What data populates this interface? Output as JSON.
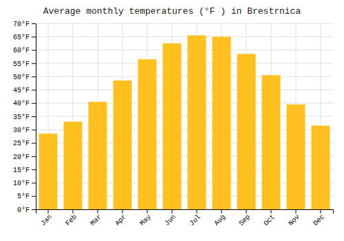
{
  "chart_data": {
    "type": "bar",
    "title": "Average monthly temperatures (°F ) in Brestrnica",
    "categories": [
      "Jan",
      "Feb",
      "Mar",
      "Apr",
      "May",
      "Jun",
      "Jul",
      "Aug",
      "Sep",
      "Oct",
      "Nov",
      "Dec"
    ],
    "values": [
      28.5,
      33.0,
      40.5,
      48.5,
      56.5,
      62.5,
      65.5,
      65.0,
      58.5,
      50.5,
      39.5,
      31.5
    ],
    "color": "#FFC020",
    "ylim": [
      0,
      70
    ],
    "yticks": [
      {
        "value": 0,
        "label": "0°F"
      },
      {
        "value": 5,
        "label": "5°F"
      },
      {
        "value": 10,
        "label": "10°F"
      },
      {
        "value": 15,
        "label": "15°F"
      },
      {
        "value": 20,
        "label": "20°F"
      },
      {
        "value": 25,
        "label": "25°F"
      },
      {
        "value": 30,
        "label": "30°F"
      },
      {
        "value": 35,
        "label": "35°F"
      },
      {
        "value": 40,
        "label": "40°F"
      },
      {
        "value": 45,
        "label": "45°F"
      },
      {
        "value": 50,
        "label": "50°F"
      },
      {
        "value": 55,
        "label": "55°F"
      },
      {
        "value": 60,
        "label": "60°F"
      },
      {
        "value": 65,
        "label": "65°F"
      },
      {
        "value": 70,
        "label": "70°F"
      }
    ],
    "grid": true
  }
}
